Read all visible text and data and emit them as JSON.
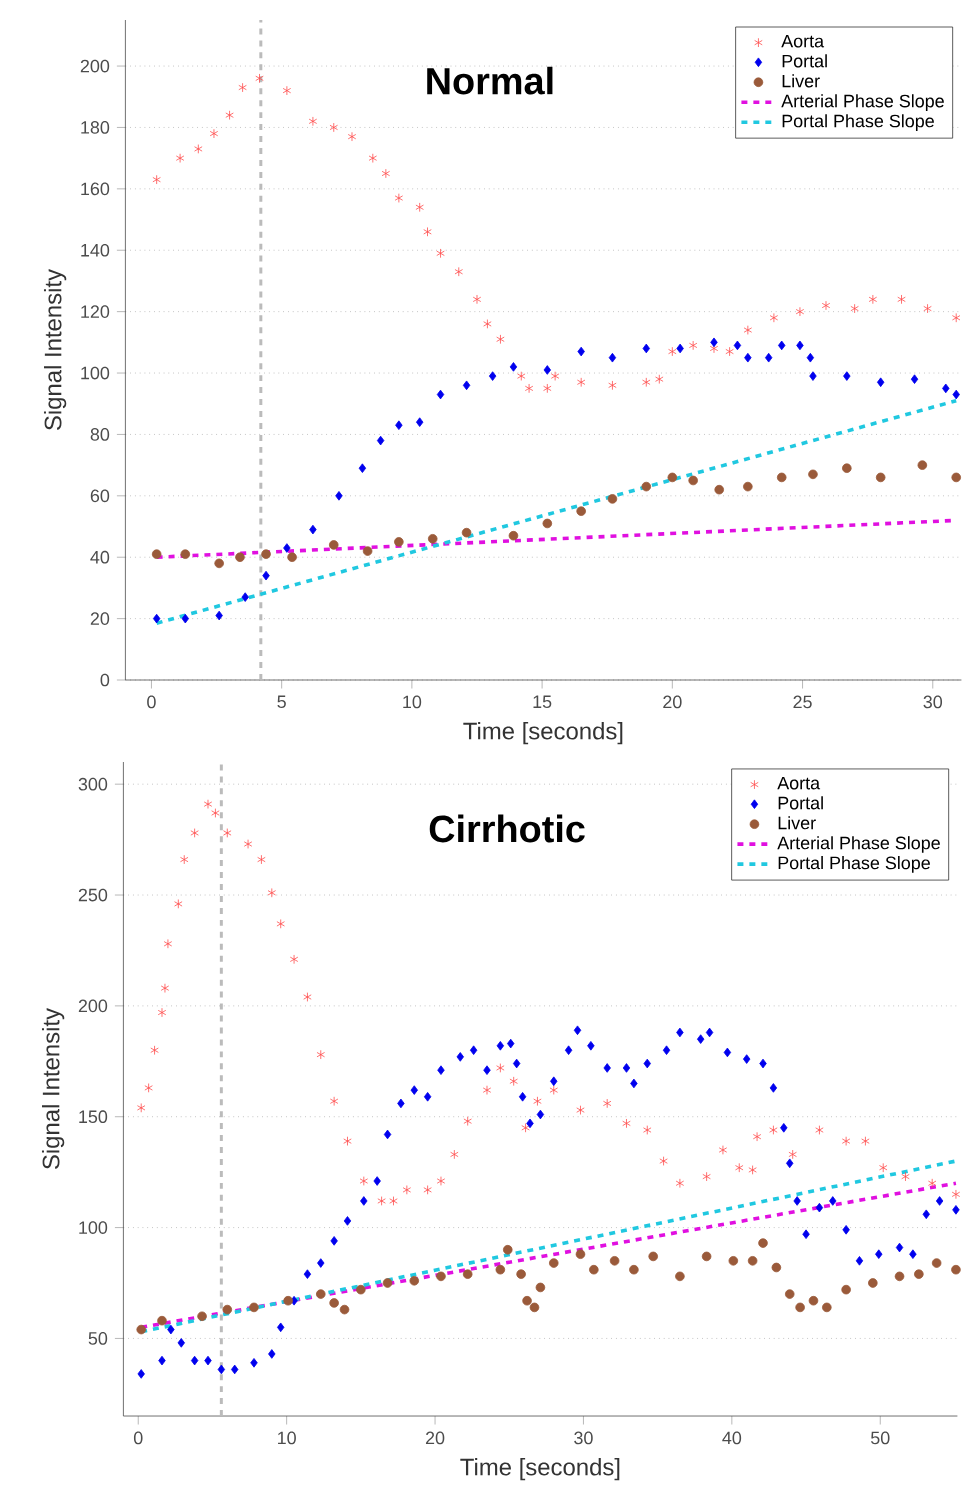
{
  "chart_data": [
    {
      "type": "scatter",
      "title": "Normal",
      "xlabel": "Time [seconds]",
      "ylabel": "Signal Intensity",
      "xlim": [
        -1,
        31.1
      ],
      "ylim": [
        0,
        215
      ],
      "xticks": [
        0,
        5,
        10,
        15,
        20,
        25,
        30
      ],
      "yticks": [
        0,
        20,
        40,
        60,
        80,
        100,
        120,
        140,
        160,
        180,
        200
      ],
      "grid": "y",
      "legend": "top right",
      "ref_lines": [
        {
          "axis": "x",
          "value": 4.2,
          "color": "#bbbbbb",
          "line_style": "dashed"
        }
      ],
      "series": [
        {
          "name": "Aorta",
          "marker": "cross",
          "color": "#ff4c4c",
          "x": [
            0.2,
            1.1,
            1.8,
            2.4,
            3,
            3.5,
            4.15,
            5.2,
            6.2,
            7,
            7.7,
            8.5,
            9,
            9.5,
            10.3,
            10.6,
            11.1,
            11.8,
            12.5,
            12.9,
            13.4,
            14.2,
            14.5,
            15.2,
            15.5,
            16.5,
            17.7,
            19,
            19.5,
            20,
            20.8,
            21.6,
            22.2,
            22.9,
            23.9,
            24.9,
            25.9,
            27,
            27.7,
            28.8,
            29.8,
            30.9
          ],
          "values": [
            163,
            170,
            173,
            178,
            184,
            193,
            196,
            192,
            182,
            180,
            177,
            170,
            165,
            157,
            154,
            146,
            139,
            133,
            124,
            116,
            111,
            99,
            95,
            95,
            99,
            97,
            96,
            97,
            98,
            107,
            109,
            108,
            107,
            114,
            118,
            120,
            122,
            121,
            124,
            124,
            121,
            118
          ]
        },
        {
          "name": "Portal",
          "marker": "diamond",
          "color": "#0000ee",
          "x": [
            0.2,
            1.3,
            2.6,
            3.6,
            4.4,
            5.2,
            6.2,
            7.2,
            8.1,
            8.8,
            9.5,
            10.3,
            11.1,
            12.1,
            13.1,
            13.9,
            15.2,
            16.5,
            17.7,
            19,
            20.3,
            21.6,
            22.5,
            22.9,
            23.7,
            24.2,
            24.9,
            25.3,
            25.4,
            26.7,
            28,
            29.3,
            30.5,
            30.9
          ],
          "values": [
            20,
            20,
            21,
            27,
            34,
            43,
            49,
            60,
            69,
            78,
            83,
            84,
            93,
            96,
            99,
            102,
            101,
            107,
            105,
            108,
            108,
            110,
            109,
            105,
            105,
            109,
            109,
            105,
            99,
            99,
            97,
            98,
            95,
            93
          ]
        },
        {
          "name": "Liver",
          "marker": "circle",
          "color": "#9a5a3a",
          "x": [
            0.2,
            1.3,
            2.6,
            3.4,
            4.4,
            5.4,
            7,
            8.3,
            9.5,
            10.8,
            12.1,
            13.9,
            15.2,
            16.5,
            17.7,
            19,
            20,
            20.8,
            21.8,
            22.9,
            24.2,
            25.4,
            26.7,
            28,
            29.6,
            30.9
          ],
          "values": [
            41,
            41,
            38,
            40,
            41,
            40,
            44,
            42,
            45,
            46,
            48,
            47,
            51,
            55,
            59,
            63,
            66,
            65,
            62,
            63,
            66,
            67,
            69,
            66,
            70,
            66
          ]
        },
        {
          "name": "Arterial Phase Slope",
          "type": "line",
          "marker": "none",
          "line_style": "dashed",
          "color": "#e010e0",
          "x": [
            0.2,
            30.9
          ],
          "values": [
            40,
            52
          ]
        },
        {
          "name": "Portal Phase Slope",
          "type": "line",
          "marker": "none",
          "line_style": "dashed",
          "color": "#20c8e0",
          "x": [
            0.2,
            30.9
          ],
          "values": [
            18.5,
            91
          ]
        }
      ]
    },
    {
      "type": "scatter",
      "title": "Cirrhotic",
      "xlabel": "Time [seconds]",
      "ylabel": "Signal Intensity",
      "xlim": [
        -1,
        55.2
      ],
      "ylim": [
        15,
        310
      ],
      "xticks": [
        0,
        10,
        20,
        30,
        40,
        50
      ],
      "yticks": [
        50,
        100,
        150,
        200,
        250,
        300
      ],
      "grid": "y",
      "legend": "top right",
      "ref_lines": [
        {
          "axis": "x",
          "value": 5.6,
          "color": "#bbbbbb",
          "line_style": "dashed"
        }
      ],
      "series": [
        {
          "name": "Aorta",
          "marker": "cross",
          "color": "#ff4c4c",
          "x": [
            0.2,
            0.7,
            1.1,
            1.6,
            1.8,
            2,
            2.7,
            3.1,
            3.8,
            4.7,
            5.2,
            6,
            7.4,
            8.3,
            9,
            9.6,
            10.5,
            11.4,
            12.3,
            13.2,
            14.1,
            15.2,
            16.4,
            17.2,
            18.1,
            19.5,
            20.4,
            21.3,
            22.2,
            23.5,
            24.4,
            25.3,
            26.1,
            26.9,
            28,
            29.8,
            31.6,
            32.9,
            34.3,
            35.4,
            36.5,
            38.3,
            39.4,
            40.5,
            41.4,
            41.7,
            42.8,
            44.1,
            45.9,
            47.7,
            49,
            50.2,
            51.7,
            53.5,
            55.1
          ],
          "values": [
            154,
            163,
            180,
            197,
            208,
            228,
            246,
            266,
            278,
            291,
            287,
            278,
            273,
            266,
            251,
            237,
            221,
            204,
            178,
            157,
            139,
            121,
            112,
            112,
            117,
            117,
            121,
            133,
            148,
            162,
            172,
            166,
            145,
            157,
            162,
            153,
            156,
            147,
            144,
            130,
            120,
            123,
            135,
            127,
            126,
            141,
            144,
            133,
            144,
            139,
            139,
            127,
            123,
            120,
            115
          ]
        },
        {
          "name": "Portal",
          "marker": "diamond",
          "color": "#0000ee",
          "x": [
            0.2,
            1.6,
            2.2,
            2.9,
            3.8,
            4.7,
            5.6,
            6.5,
            7.8,
            9,
            9.6,
            10.5,
            11.4,
            12.3,
            13.2,
            14.1,
            15.2,
            16.1,
            16.8,
            17.7,
            18.6,
            19.5,
            20.4,
            21.7,
            22.6,
            23.5,
            24.4,
            25.1,
            25.5,
            25.9,
            26.4,
            27.1,
            28,
            29,
            29.6,
            30.5,
            31.6,
            32.9,
            33.4,
            34.3,
            35.6,
            36.5,
            37.9,
            38.5,
            39.7,
            41,
            42.1,
            42.8,
            43.5,
            43.9,
            44.4,
            45,
            45.9,
            46.8,
            47.7,
            48.6,
            49.9,
            51.3,
            52.2,
            53.1,
            54,
            55.1
          ],
          "values": [
            34,
            40,
            54,
            48,
            40,
            40,
            36,
            36,
            39,
            43,
            55,
            67,
            79,
            84,
            94,
            103,
            112,
            121,
            142,
            156,
            162,
            159,
            171,
            177,
            180,
            171,
            182,
            183,
            174,
            159,
            147,
            151,
            166,
            180,
            189,
            182,
            172,
            172,
            165,
            174,
            180,
            188,
            185,
            188,
            179,
            176,
            174,
            163,
            145,
            129,
            112,
            97,
            109,
            112,
            99,
            85,
            88,
            91,
            88,
            106,
            112,
            108
          ]
        },
        {
          "name": "Liver",
          "marker": "circle",
          "color": "#9a5a3a",
          "x": [
            0.2,
            1.6,
            4.3,
            6,
            7.8,
            10.1,
            12.3,
            13.2,
            13.9,
            15,
            16.8,
            18.6,
            20.4,
            22.2,
            24.4,
            24.9,
            25.8,
            26.2,
            26.7,
            27.1,
            28,
            29.8,
            30.7,
            32.1,
            33.4,
            34.7,
            36.5,
            38.3,
            40.1,
            41.4,
            42.1,
            43,
            43.9,
            44.6,
            45.5,
            46.4,
            47.7,
            49.5,
            51.3,
            52.6,
            53.8,
            55.1
          ],
          "values": [
            54,
            58,
            60,
            63,
            64,
            67,
            70,
            66,
            63,
            72,
            75,
            76,
            78,
            79,
            81,
            90,
            79,
            67,
            64,
            73,
            84,
            88,
            81,
            85,
            81,
            87,
            78,
            87,
            85,
            85,
            93,
            82,
            70,
            64,
            67,
            64,
            72,
            75,
            78,
            79,
            84,
            81
          ]
        },
        {
          "name": "Arterial Phase Slope",
          "type": "line",
          "marker": "none",
          "line_style": "dashed",
          "color": "#e010e0",
          "x": [
            0.2,
            55.1
          ],
          "values": [
            55,
            120
          ]
        },
        {
          "name": "Portal Phase Slope",
          "type": "line",
          "marker": "none",
          "line_style": "dashed",
          "color": "#20c8e0",
          "x": [
            0.2,
            55.1
          ],
          "values": [
            53,
            130
          ]
        }
      ]
    }
  ]
}
